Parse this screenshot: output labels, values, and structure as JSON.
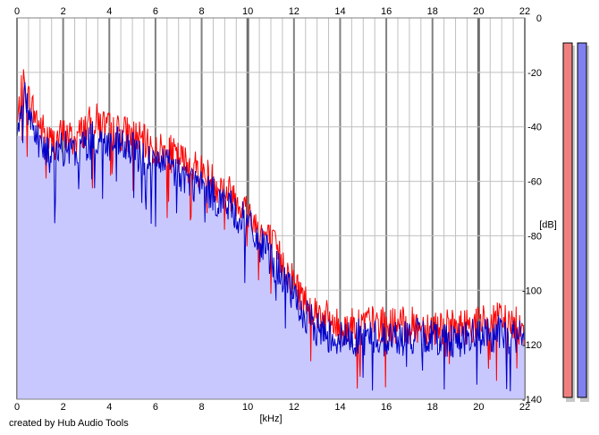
{
  "chart_data": {
    "type": "area",
    "xlabel": "[kHz]",
    "ylabel": "[dB]",
    "xlim": [
      0,
      22
    ],
    "ylim": [
      -140,
      0
    ],
    "x_ticks": [
      "0",
      "2",
      "4",
      "6",
      "8",
      "10",
      "12",
      "14",
      "16",
      "18",
      "20",
      "22"
    ],
    "y_ticks": [
      "0",
      "-20",
      "-40",
      "-60",
      "-80",
      "-100",
      "-120",
      "-140"
    ],
    "grid": true,
    "colors": {
      "fill": "#c8c8ff",
      "channel_1": "#ff0000",
      "channel_2": "#0000c8",
      "grid": "#c0c0c0",
      "major_grid": "#808080",
      "meter_left": "#f08080",
      "meter_right": "#8080f0"
    },
    "series": [
      {
        "color": "#ff0000",
        "x": [
          0,
          0.25,
          0.5,
          1,
          1.5,
          2,
          2.5,
          3,
          3.5,
          4,
          4.5,
          5,
          5.5,
          6,
          6.5,
          7,
          7.5,
          8,
          8.5,
          9,
          9.5,
          10,
          10.5,
          11,
          11.5,
          12,
          12.5,
          13,
          13.5,
          14,
          15,
          16,
          17,
          18,
          19,
          20,
          21,
          22
        ],
        "values": [
          -40,
          -24,
          -30,
          -40,
          -46,
          -43,
          -45,
          -40,
          -38,
          -41,
          -42,
          -43,
          -46,
          -49,
          -49,
          -52,
          -54,
          -56,
          -60,
          -63,
          -66,
          -71,
          -78,
          -82,
          -90,
          -97,
          -104,
          -108,
          -111,
          -114,
          -112,
          -113,
          -113,
          -113,
          -114,
          -112,
          -111,
          -114
        ]
      },
      {
        "color": "#0000c8",
        "x": [
          0,
          0.25,
          0.5,
          1,
          1.5,
          2,
          2.5,
          3,
          3.5,
          4,
          4.5,
          5,
          5.5,
          6,
          6.5,
          7,
          7.5,
          8,
          8.5,
          9,
          9.5,
          10,
          10.5,
          11,
          11.5,
          12,
          12.5,
          13,
          13.5,
          14,
          15,
          16,
          17,
          18,
          19,
          20,
          21,
          22
        ],
        "values": [
          -42,
          -28,
          -34,
          -46,
          -52,
          -48,
          -50,
          -46,
          -44,
          -47,
          -47,
          -49,
          -51,
          -54,
          -54,
          -57,
          -60,
          -62,
          -65,
          -68,
          -72,
          -76,
          -83,
          -88,
          -95,
          -103,
          -110,
          -114,
          -116,
          -118,
          -117,
          -118,
          -117,
          -117,
          -118,
          -117,
          -116,
          -118
        ]
      }
    ],
    "meters": [
      {
        "channel": "left",
        "color": "#f08080"
      },
      {
        "channel": "right",
        "color": "#8080f0"
      }
    ]
  },
  "footer": {
    "credit": "created by Hub Audio Tools"
  }
}
